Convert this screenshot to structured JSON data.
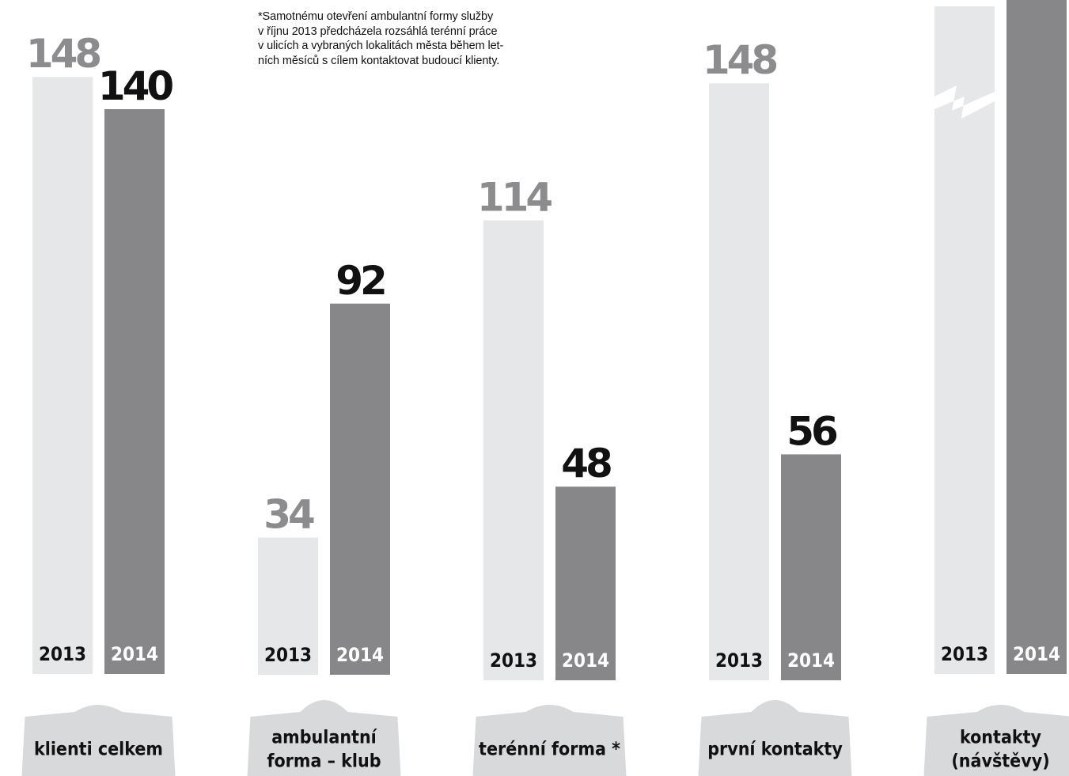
{
  "chart_data": {
    "type": "bar",
    "categories": [
      "klienti celkem",
      "ambulantní forma – klub",
      "terénní forma *",
      "první kontakty",
      "kontakty (návštěvy)"
    ],
    "category_lines": [
      [
        "klienti celkem"
      ],
      [
        "ambulantní",
        "forma – klub"
      ],
      [
        "terénní forma *"
      ],
      [
        "první kontakty"
      ],
      [
        "kontakty",
        "(návštěvy)"
      ]
    ],
    "series": [
      {
        "name": "2013",
        "values": [
          148,
          34,
          114,
          148,
          null
        ],
        "color": "#e6e7e8",
        "label_color": "#8c8c8e",
        "year_color": "#111111"
      },
      {
        "name": "2014",
        "values": [
          140,
          92,
          48,
          56,
          null
        ],
        "color": "#878789",
        "label_color": "#111111",
        "year_color": "#ffffff"
      }
    ],
    "value_labels": [
      [
        "148",
        "140"
      ],
      [
        "34",
        "92"
      ],
      [
        "114",
        "48"
      ],
      [
        "148",
        "56"
      ],
      [
        "",
        ""
      ]
    ],
    "truncated_category": "kontakty (návštěvy)",
    "ylim": [
      0,
      148
    ]
  },
  "note": [
    "*Samotnému otevření ambulantní formy služby",
    "v říjnu 2013 předcházela rozsáhlá terénní práce",
    "v ulicích a vybraných lokalitách města během let-",
    "ních měsíců s cílem kontaktovat budoucí klienty."
  ],
  "colors": {
    "tab": "#d8d9db",
    "background": "#ffffff"
  }
}
